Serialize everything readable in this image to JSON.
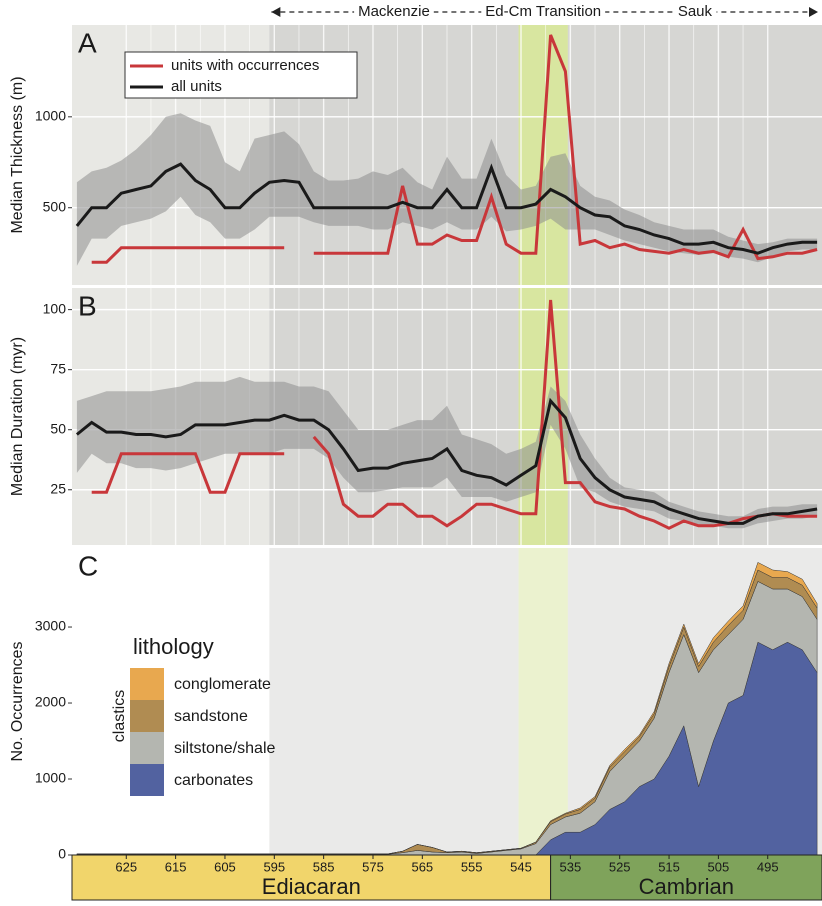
{
  "intervals": [
    {
      "name": "Mackenzie",
      "start": 596,
      "end": 545.5,
      "color": "#d6d6d3"
    },
    {
      "name": "Ed-Cm Transition",
      "start": 545.5,
      "end": 535.5,
      "color": "#d8e6a0"
    },
    {
      "name": "Sauk",
      "start": 535.5,
      "end": 484,
      "color": "#d6d6d3"
    }
  ],
  "time_scale": {
    "periods": [
      {
        "name": "Ediacaran",
        "start": 636,
        "end": 539,
        "color": "#f1d56b"
      },
      {
        "name": "Cambrian",
        "start": 539,
        "end": 484,
        "color": "#7fa35b"
      }
    ]
  },
  "chart_data": [
    {
      "type": "line",
      "label": "A",
      "y_label": "Median Thickness (m)",
      "legend": "upper left",
      "grid": true,
      "xlim": [
        636,
        484
      ],
      "ylim": [
        75,
        1505
      ],
      "yticks": [
        500,
        1000
      ],
      "xticks": [
        625,
        615,
        605,
        595,
        585,
        575,
        565,
        555,
        545,
        535,
        525,
        515,
        505,
        495
      ],
      "x": [
        635,
        632,
        629,
        626,
        623,
        620,
        617,
        614,
        611,
        608,
        605,
        602,
        599,
        596,
        593,
        590,
        587,
        584,
        581,
        578,
        575,
        572,
        569,
        566,
        563,
        560,
        557,
        554,
        551,
        548,
        545,
        542,
        539,
        536,
        533,
        530,
        527,
        524,
        521,
        518,
        515,
        512,
        509,
        506,
        503,
        500,
        497,
        494,
        491,
        488,
        485
      ],
      "series": [
        {
          "name": "units with occurrences",
          "color": "#c8373a",
          "values": [
            null,
            200,
            200,
            280,
            280,
            280,
            280,
            280,
            280,
            280,
            280,
            280,
            280,
            280,
            280,
            null,
            250,
            250,
            250,
            250,
            250,
            250,
            620,
            300,
            300,
            350,
            320,
            320,
            560,
            300,
            250,
            250,
            1450,
            1250,
            300,
            320,
            280,
            300,
            270,
            260,
            250,
            270,
            250,
            260,
            230,
            380,
            220,
            230,
            250,
            250,
            270
          ]
        },
        {
          "name": "all units",
          "color": "#1a1a1a",
          "band_color": "#8e8e8e",
          "values": [
            400,
            500,
            500,
            580,
            600,
            620,
            700,
            740,
            650,
            600,
            500,
            500,
            580,
            640,
            650,
            640,
            500,
            500,
            500,
            500,
            500,
            500,
            530,
            500,
            500,
            600,
            500,
            500,
            720,
            500,
            500,
            520,
            600,
            560,
            500,
            460,
            450,
            400,
            380,
            350,
            330,
            300,
            300,
            310,
            280,
            270,
            250,
            280,
            300,
            310,
            310
          ],
          "upper": [
            640,
            700,
            720,
            760,
            820,
            900,
            1000,
            1020,
            980,
            950,
            750,
            700,
            880,
            900,
            920,
            850,
            700,
            650,
            650,
            660,
            700,
            680,
            720,
            640,
            600,
            780,
            660,
            660,
            880,
            680,
            600,
            620,
            780,
            800,
            620,
            560,
            540,
            490,
            460,
            420,
            400,
            380,
            380,
            380,
            340,
            320,
            300,
            310,
            330,
            330,
            330
          ],
          "lower": [
            180,
            330,
            330,
            400,
            420,
            440,
            480,
            560,
            460,
            420,
            330,
            330,
            380,
            450,
            450,
            450,
            420,
            400,
            400,
            400,
            380,
            380,
            420,
            400,
            380,
            420,
            380,
            380,
            450,
            370,
            380,
            400,
            440,
            380,
            380,
            380,
            350,
            320,
            300,
            280,
            260,
            250,
            240,
            250,
            230,
            220,
            200,
            230,
            260,
            270,
            270
          ]
        }
      ]
    },
    {
      "type": "line",
      "label": "B",
      "y_label": "Median Duration (myr)",
      "grid": true,
      "xlim": [
        636,
        484
      ],
      "ylim": [
        2,
        109
      ],
      "yticks": [
        25,
        50,
        75,
        100
      ],
      "xticks": [
        625,
        615,
        605,
        595,
        585,
        575,
        565,
        555,
        545,
        535,
        525,
        515,
        505,
        495
      ],
      "x": [
        635,
        632,
        629,
        626,
        623,
        620,
        617,
        614,
        611,
        608,
        605,
        602,
        599,
        596,
        593,
        590,
        587,
        584,
        581,
        578,
        575,
        572,
        569,
        566,
        563,
        560,
        557,
        554,
        551,
        548,
        545,
        542,
        539,
        536,
        533,
        530,
        527,
        524,
        521,
        518,
        515,
        512,
        509,
        506,
        503,
        500,
        497,
        494,
        491,
        488,
        485
      ],
      "series": [
        {
          "color": "#c8373a",
          "values": [
            null,
            24,
            24,
            40,
            40,
            40,
            40,
            40,
            40,
            24,
            24,
            40,
            40,
            40,
            40,
            null,
            47,
            40,
            19,
            14,
            14,
            19,
            19,
            14,
            14,
            10,
            14,
            19,
            19,
            17,
            15,
            15,
            104,
            28,
            28,
            20,
            18,
            17,
            14,
            12,
            9,
            12,
            10,
            10,
            11,
            13,
            14,
            15,
            14,
            14,
            14
          ]
        },
        {
          "color": "#1a1a1a",
          "band_color": "#8e8e8e",
          "values": [
            48,
            53,
            49,
            49,
            48,
            48,
            47,
            48,
            52,
            52,
            52,
            53,
            54,
            54,
            56,
            54,
            54,
            50,
            42,
            33,
            34,
            34,
            36,
            37,
            38,
            42,
            33,
            31,
            30,
            27,
            31,
            35,
            62,
            55,
            38,
            30,
            25,
            22,
            21,
            20,
            17,
            15,
            13,
            12,
            11,
            11,
            14,
            15,
            15,
            16,
            17
          ],
          "upper": [
            62,
            64,
            66,
            66,
            66,
            66,
            67,
            68,
            70,
            70,
            70,
            72,
            70,
            70,
            70,
            68,
            68,
            66,
            58,
            50,
            50,
            50,
            52,
            54,
            54,
            60,
            48,
            46,
            44,
            40,
            42,
            45,
            68,
            62,
            48,
            38,
            30,
            26,
            25,
            24,
            20,
            18,
            16,
            15,
            14,
            14,
            17,
            18,
            18,
            19,
            19
          ],
          "lower": [
            32,
            40,
            36,
            36,
            34,
            34,
            33,
            34,
            36,
            38,
            40,
            40,
            40,
            40,
            42,
            42,
            42,
            38,
            30,
            24,
            24,
            25,
            26,
            26,
            26,
            30,
            22,
            22,
            22,
            20,
            22,
            24,
            52,
            42,
            26,
            24,
            20,
            18,
            17,
            16,
            13,
            12,
            10,
            10,
            9,
            9,
            11,
            12,
            13,
            13,
            14
          ]
        }
      ]
    },
    {
      "type": "area",
      "stacked": true,
      "label": "C",
      "y_label": "No. Occurrences",
      "legend_title": "lithology",
      "legend_group_label": "clastics",
      "legend": "center left",
      "xlim": [
        636,
        484
      ],
      "ylim": [
        0,
        4040
      ],
      "yticks": [
        0,
        1000,
        2000,
        3000
      ],
      "xticks": [
        625,
        615,
        605,
        595,
        585,
        575,
        565,
        555,
        545,
        535,
        525,
        515,
        505,
        495
      ],
      "x": [
        635,
        632,
        629,
        626,
        623,
        620,
        617,
        614,
        611,
        608,
        605,
        602,
        599,
        596,
        593,
        590,
        587,
        584,
        581,
        578,
        575,
        572,
        569,
        566,
        563,
        560,
        557,
        554,
        551,
        548,
        545,
        542,
        539,
        536,
        533,
        530,
        527,
        524,
        521,
        518,
        515,
        512,
        509,
        506,
        503,
        500,
        497,
        494,
        491,
        488,
        485
      ],
      "series": [
        {
          "name": "conglomerate",
          "color": "#e8a84f",
          "values": [
            0,
            0,
            0,
            0,
            0,
            0,
            0,
            0,
            0,
            0,
            0,
            0,
            0,
            0,
            0,
            0,
            0,
            0,
            0,
            0,
            0,
            0,
            0,
            0,
            0,
            0,
            0,
            0,
            0,
            0,
            0,
            0,
            10,
            10,
            20,
            20,
            20,
            30,
            20,
            30,
            40,
            40,
            40,
            60,
            60,
            60,
            100,
            100,
            80,
            80,
            60
          ]
        },
        {
          "name": "sandstone",
          "color": "#b08c52",
          "values": [
            5,
            5,
            5,
            5,
            5,
            5,
            5,
            5,
            5,
            5,
            5,
            5,
            5,
            5,
            5,
            5,
            5,
            5,
            5,
            5,
            5,
            5,
            20,
            80,
            60,
            10,
            10,
            10,
            10,
            10,
            10,
            20,
            40,
            40,
            50,
            50,
            60,
            60,
            60,
            60,
            80,
            100,
            80,
            100,
            120,
            120,
            150,
            150,
            150,
            150,
            150
          ]
        },
        {
          "name": "siltstone/shale",
          "color": "#b4b6b0",
          "values": [
            10,
            10,
            10,
            10,
            10,
            10,
            10,
            10,
            10,
            10,
            10,
            10,
            10,
            10,
            10,
            10,
            10,
            10,
            10,
            10,
            10,
            10,
            30,
            60,
            40,
            30,
            40,
            20,
            40,
            60,
            80,
            150,
            200,
            200,
            250,
            300,
            500,
            600,
            600,
            800,
            1100,
            1200,
            1500,
            1200,
            900,
            1000,
            800,
            800,
            700,
            700,
            700
          ]
        },
        {
          "name": "carbonates",
          "color": "#5262a0",
          "values": [
            0,
            0,
            0,
            0,
            0,
            0,
            0,
            0,
            0,
            0,
            0,
            0,
            0,
            0,
            0,
            0,
            0,
            0,
            0,
            0,
            0,
            0,
            0,
            0,
            0,
            0,
            0,
            0,
            0,
            0,
            0,
            0,
            200,
            300,
            300,
            400,
            600,
            700,
            900,
            1000,
            1300,
            1700,
            900,
            1500,
            2000,
            2100,
            2800,
            2700,
            2800,
            2700,
            2400
          ]
        }
      ]
    }
  ]
}
